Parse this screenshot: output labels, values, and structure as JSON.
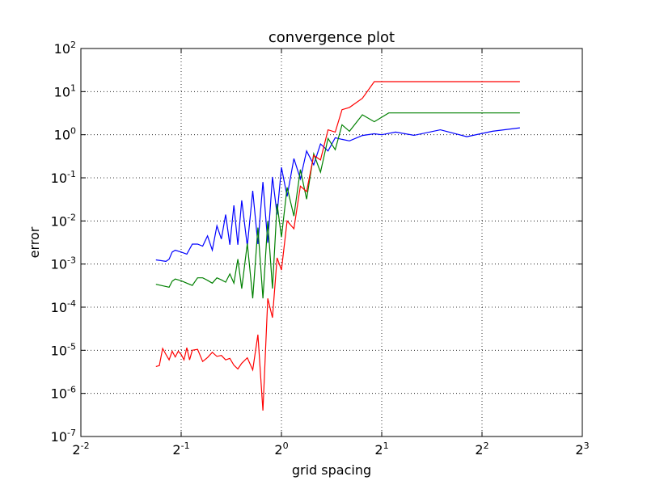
{
  "chart_data": {
    "type": "line",
    "title": "convergence plot",
    "xlabel": "grid spacing",
    "ylabel": "error",
    "x_scale": "log2",
    "y_scale": "log10",
    "xlim": [
      0.25,
      8
    ],
    "ylim": [
      1e-07,
      100
    ],
    "x_ticks": [
      {
        "value": 0.25,
        "base": "2",
        "exp": "-2"
      },
      {
        "value": 0.5,
        "base": "2",
        "exp": "-1"
      },
      {
        "value": 1,
        "base": "2",
        "exp": "0"
      },
      {
        "value": 2,
        "base": "2",
        "exp": "1"
      },
      {
        "value": 4,
        "base": "2",
        "exp": "2"
      },
      {
        "value": 8,
        "base": "2",
        "exp": "3"
      }
    ],
    "y_ticks": [
      {
        "value": 1e-07,
        "base": "10",
        "exp": "-7"
      },
      {
        "value": 1e-06,
        "base": "10",
        "exp": "-6"
      },
      {
        "value": 1e-05,
        "base": "10",
        "exp": "-5"
      },
      {
        "value": 0.0001,
        "base": "10",
        "exp": "-4"
      },
      {
        "value": 0.001,
        "base": "10",
        "exp": "-3"
      },
      {
        "value": 0.01,
        "base": "10",
        "exp": "-2"
      },
      {
        "value": 0.1,
        "base": "10",
        "exp": "-1"
      },
      {
        "value": 1,
        "base": "10",
        "exp": "0"
      },
      {
        "value": 10,
        "base": "10",
        "exp": "1"
      },
      {
        "value": 100,
        "base": "10",
        "exp": "2"
      }
    ],
    "grid": true,
    "series": [
      {
        "color": "#0000ff",
        "x": [
          0.42,
          0.45,
          0.46,
          0.47,
          0.48,
          0.5,
          0.52,
          0.54,
          0.56,
          0.58,
          0.6,
          0.62,
          0.64,
          0.66,
          0.68,
          0.7,
          0.72,
          0.74,
          0.76,
          0.79,
          0.82,
          0.85,
          0.88,
          0.91,
          0.94,
          0.97,
          1.0,
          1.04,
          1.09,
          1.14,
          1.19,
          1.25,
          1.31,
          1.38,
          1.45,
          1.52,
          1.6,
          1.75,
          1.9,
          2.0,
          2.2,
          2.5,
          3.0,
          3.6,
          4.3,
          5.2
        ],
        "y": [
          0.00125,
          0.00115,
          0.0013,
          0.0019,
          0.0021,
          0.0019,
          0.0017,
          0.0029,
          0.0029,
          0.0026,
          0.0045,
          0.0021,
          0.0077,
          0.0038,
          0.014,
          0.0028,
          0.023,
          0.0028,
          0.03,
          0.0026,
          0.05,
          0.0029,
          0.08,
          0.0031,
          0.105,
          0.014,
          0.175,
          0.037,
          0.28,
          0.095,
          0.42,
          0.2,
          0.61,
          0.42,
          0.85,
          0.78,
          0.72,
          0.96,
          1.05,
          1.0,
          1.15,
          0.97,
          1.3,
          0.9,
          1.2,
          1.45
        ]
      },
      {
        "color": "#008000",
        "x": [
          0.42,
          0.46,
          0.47,
          0.48,
          0.5,
          0.52,
          0.54,
          0.56,
          0.58,
          0.6,
          0.62,
          0.64,
          0.66,
          0.68,
          0.7,
          0.72,
          0.74,
          0.76,
          0.79,
          0.82,
          0.85,
          0.88,
          0.91,
          0.94,
          0.97,
          1.0,
          1.04,
          1.09,
          1.14,
          1.19,
          1.25,
          1.31,
          1.38,
          1.45,
          1.52,
          1.6,
          1.75,
          1.9,
          2.1,
          2.5,
          3.0,
          3.6,
          4.3,
          5.2
        ],
        "y": [
          0.00034,
          0.00029,
          0.0004,
          0.00045,
          0.00041,
          0.00036,
          0.00032,
          0.00048,
          0.00048,
          0.00042,
          0.00036,
          0.00048,
          0.00043,
          0.00038,
          0.00059,
          0.00036,
          0.0013,
          0.00027,
          0.003,
          0.00016,
          0.007,
          0.00016,
          0.01,
          0.00027,
          0.025,
          0.0042,
          0.06,
          0.013,
          0.155,
          0.032,
          0.36,
          0.135,
          0.82,
          0.45,
          1.7,
          1.2,
          2.9,
          2.0,
          3.2,
          3.2,
          3.2,
          3.2,
          3.2,
          3.2
        ]
      },
      {
        "color": "#ff0000",
        "x": [
          0.42,
          0.43,
          0.44,
          0.45,
          0.46,
          0.47,
          0.48,
          0.49,
          0.5,
          0.51,
          0.52,
          0.53,
          0.54,
          0.56,
          0.58,
          0.6,
          0.62,
          0.64,
          0.66,
          0.68,
          0.7,
          0.72,
          0.74,
          0.76,
          0.79,
          0.82,
          0.85,
          0.88,
          0.91,
          0.94,
          0.97,
          1.0,
          1.04,
          1.09,
          1.14,
          1.19,
          1.25,
          1.31,
          1.38,
          1.45,
          1.52,
          1.6,
          1.75,
          1.9,
          2.1,
          2.5,
          3.0,
          3.6,
          4.3,
          5.2
        ],
        "y": [
          4.2e-06,
          4.4e-06,
          1.1e-05,
          8e-06,
          6e-06,
          9.5e-06,
          7e-06,
          9.5e-06,
          8e-06,
          6e-06,
          1.15e-05,
          6e-06,
          1e-05,
          1.05e-05,
          5.5e-06,
          6.8e-06,
          9e-06,
          7.2e-06,
          7.6e-06,
          6e-06,
          6.5e-06,
          4.5e-06,
          3.7e-06,
          5e-06,
          6.7e-06,
          3.5e-06,
          2.3e-05,
          4e-07,
          0.00016,
          5.7e-05,
          0.0014,
          0.00073,
          0.01,
          0.0066,
          0.064,
          0.048,
          0.33,
          0.26,
          1.3,
          1.15,
          3.8,
          4.3,
          7.0,
          17.0,
          17.0,
          17.0,
          17.0,
          17.0,
          17.0,
          17.0
        ]
      }
    ]
  }
}
